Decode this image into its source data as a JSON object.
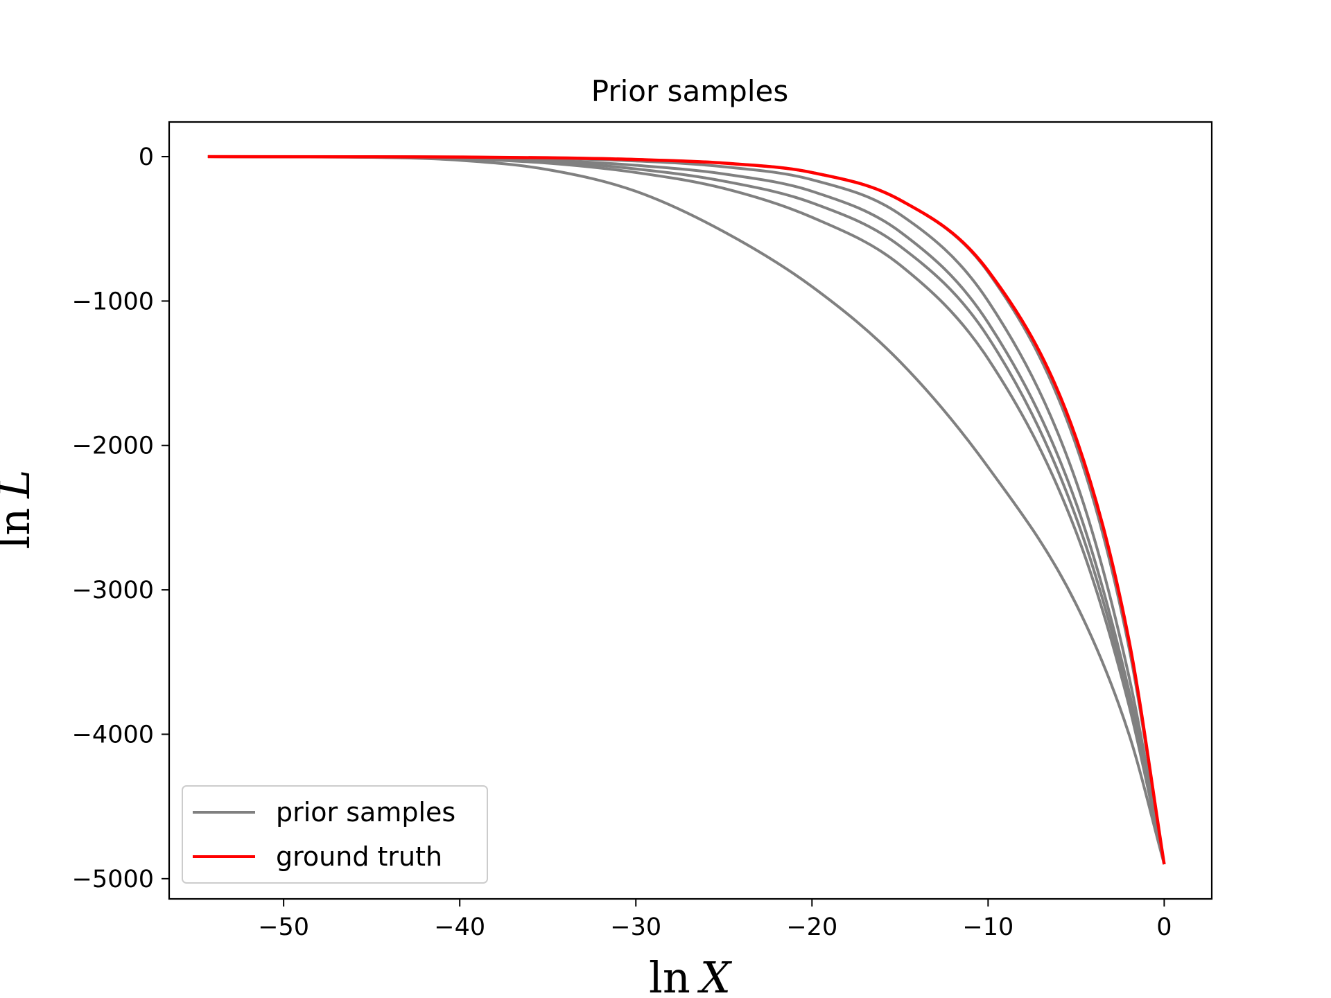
{
  "chart_data": {
    "type": "line",
    "title": "Prior samples",
    "xlabel": "ln X",
    "ylabel": "ln L",
    "xlim": [
      -56.5,
      2.7
    ],
    "ylim": [
      -5140,
      240
    ],
    "xticks": [
      -50,
      -40,
      -30,
      -20,
      -10,
      0
    ],
    "yticks": [
      0,
      -1000,
      -2000,
      -3000,
      -4000,
      -5000
    ],
    "xtick_labels": [
      "−50",
      "−40",
      "−30",
      "−20",
      "−10",
      "0"
    ],
    "ytick_labels": [
      "0",
      "−1000",
      "−2000",
      "−3000",
      "−4000",
      "−5000"
    ],
    "grid": false,
    "legend": {
      "placement": "lower-left",
      "entries": [
        {
          "label": "prior samples",
          "color": "#808080"
        },
        {
          "label": "ground truth",
          "color": "#ff0000"
        }
      ]
    },
    "series": [
      {
        "color": "#808080",
        "x": [
          -54.3,
          -45,
          -40,
          -35,
          -30,
          -25,
          -20,
          -15,
          -10,
          -5,
          -2,
          0
        ],
        "y": [
          0,
          -5,
          -25,
          -90,
          -240,
          -520,
          -900,
          -1420,
          -2150,
          -3100,
          -4000,
          -4900
        ]
      },
      {
        "color": "#808080",
        "x": [
          -54.3,
          -45,
          -40,
          -35,
          -30,
          -25,
          -20,
          -15,
          -10,
          -5,
          -2,
          0
        ],
        "y": [
          0,
          -4,
          -15,
          -45,
          -110,
          -220,
          -420,
          -750,
          -1400,
          -2600,
          -3800,
          -4900
        ]
      },
      {
        "color": "#808080",
        "x": [
          -54.3,
          -45,
          -40,
          -35,
          -30,
          -25,
          -20,
          -15,
          -10,
          -5,
          -2,
          0
        ],
        "y": [
          0,
          -3,
          -12,
          -35,
          -85,
          -170,
          -320,
          -620,
          -1250,
          -2500,
          -3750,
          -4900
        ]
      },
      {
        "color": "#808080",
        "x": [
          -54.3,
          -45,
          -40,
          -35,
          -30,
          -25,
          -20,
          -15,
          -10,
          -5,
          -2,
          0
        ],
        "y": [
          0,
          -2,
          -8,
          -25,
          -60,
          -120,
          -240,
          -520,
          -1150,
          -2400,
          -3700,
          -4900
        ]
      },
      {
        "color": "#808080",
        "x": [
          -54.3,
          -45,
          -40,
          -35,
          -30,
          -25,
          -20,
          -15,
          -10,
          -5,
          -2,
          0
        ],
        "y": [
          0,
          -1,
          -4,
          -12,
          -30,
          -70,
          -160,
          -400,
          -1000,
          -2250,
          -3600,
          -4900
        ]
      },
      {
        "color": "#808080",
        "x": [
          -54.3,
          -45,
          -40,
          -35,
          -30,
          -25,
          -20,
          -15,
          -10,
          -5,
          -2,
          0
        ],
        "y": [
          0,
          -1,
          -3,
          -8,
          -20,
          -45,
          -110,
          -300,
          -800,
          -2000,
          -3400,
          -4900
        ]
      },
      {
        "name": "ground truth",
        "color": "#ff0000",
        "x": [
          -54.3,
          -45,
          -40,
          -35,
          -30,
          -25,
          -20,
          -15,
          -10,
          -5,
          -2,
          0
        ],
        "y": [
          0,
          -1,
          -3,
          -8,
          -20,
          -45,
          -110,
          -300,
          -790,
          -1950,
          -3350,
          -4900
        ]
      }
    ]
  }
}
